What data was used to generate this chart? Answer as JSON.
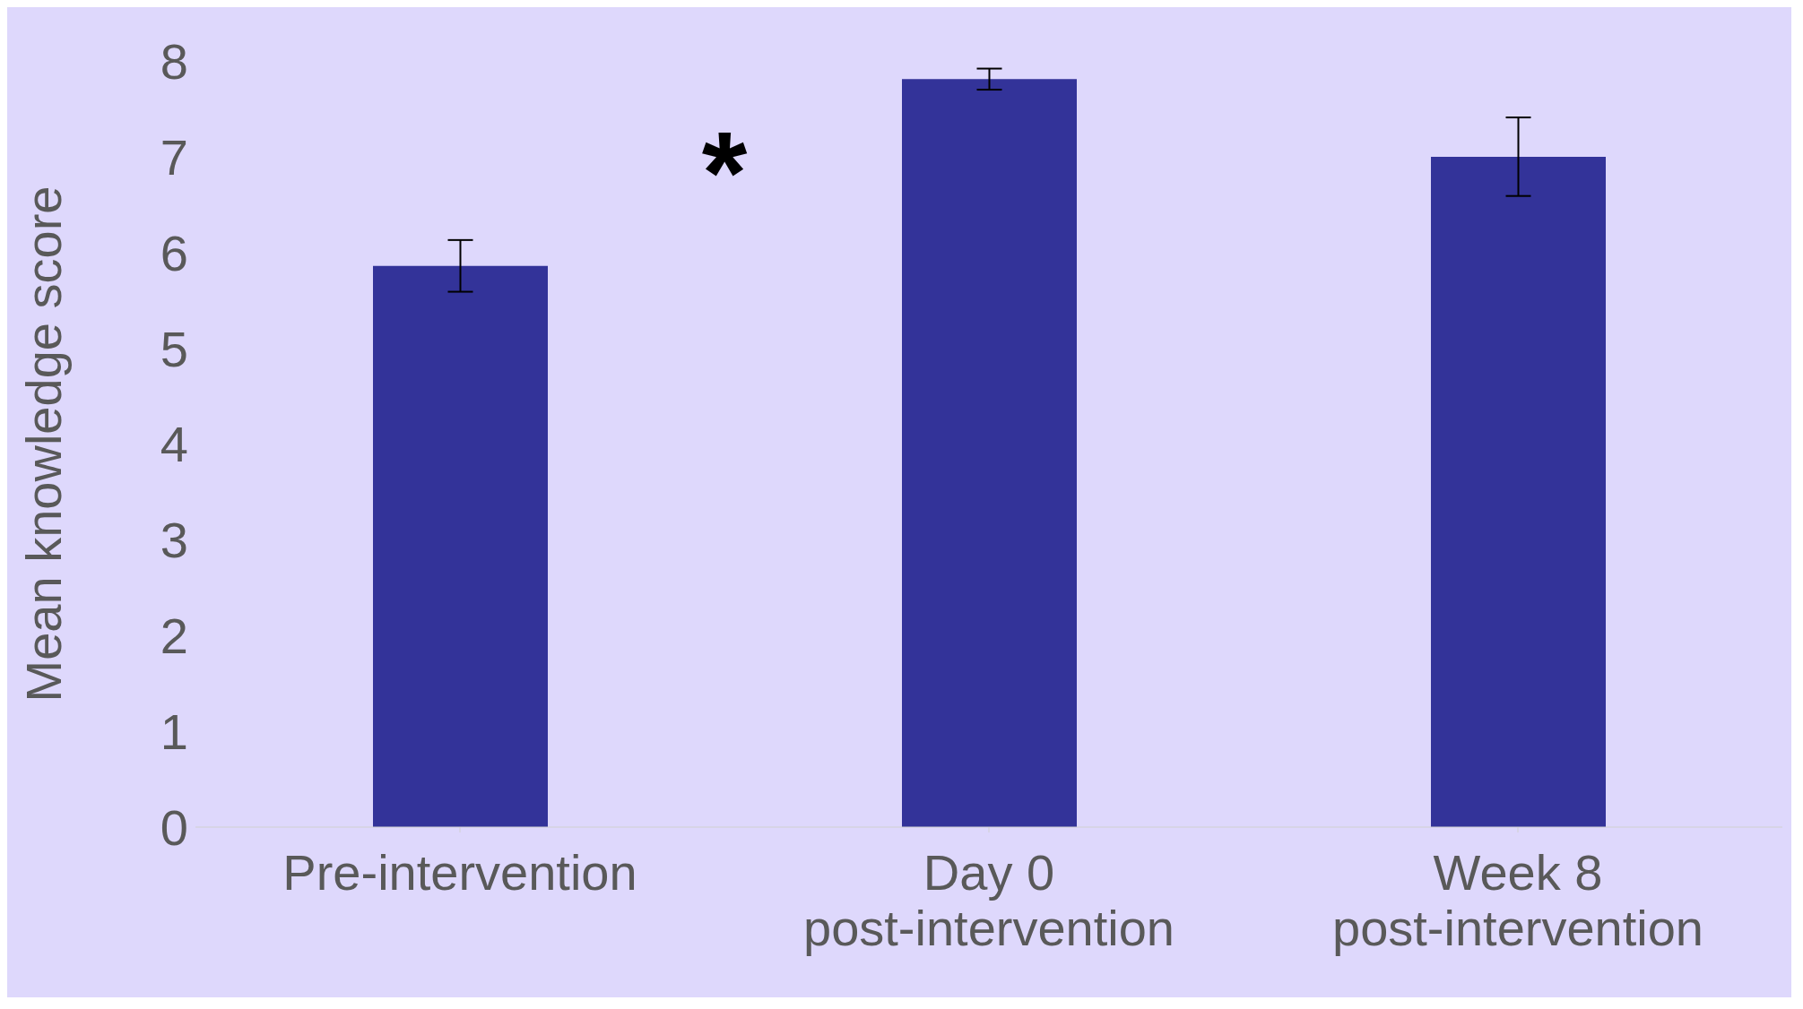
{
  "chart_data": {
    "type": "bar",
    "ylabel": "Mean knowledge score",
    "categories": [
      "Pre-intervention",
      "Day 0 post-intervention",
      "Week 8 post-intervention"
    ],
    "values": [
      5.86,
      7.81,
      7.0
    ],
    "errors": [
      0.27,
      0.11,
      0.41
    ],
    "color": "#333399",
    "ylim": [
      0,
      8
    ],
    "yticks": [
      0,
      1,
      2,
      3,
      4,
      5,
      6,
      7,
      8
    ],
    "annotations": [
      "*"
    ]
  }
}
